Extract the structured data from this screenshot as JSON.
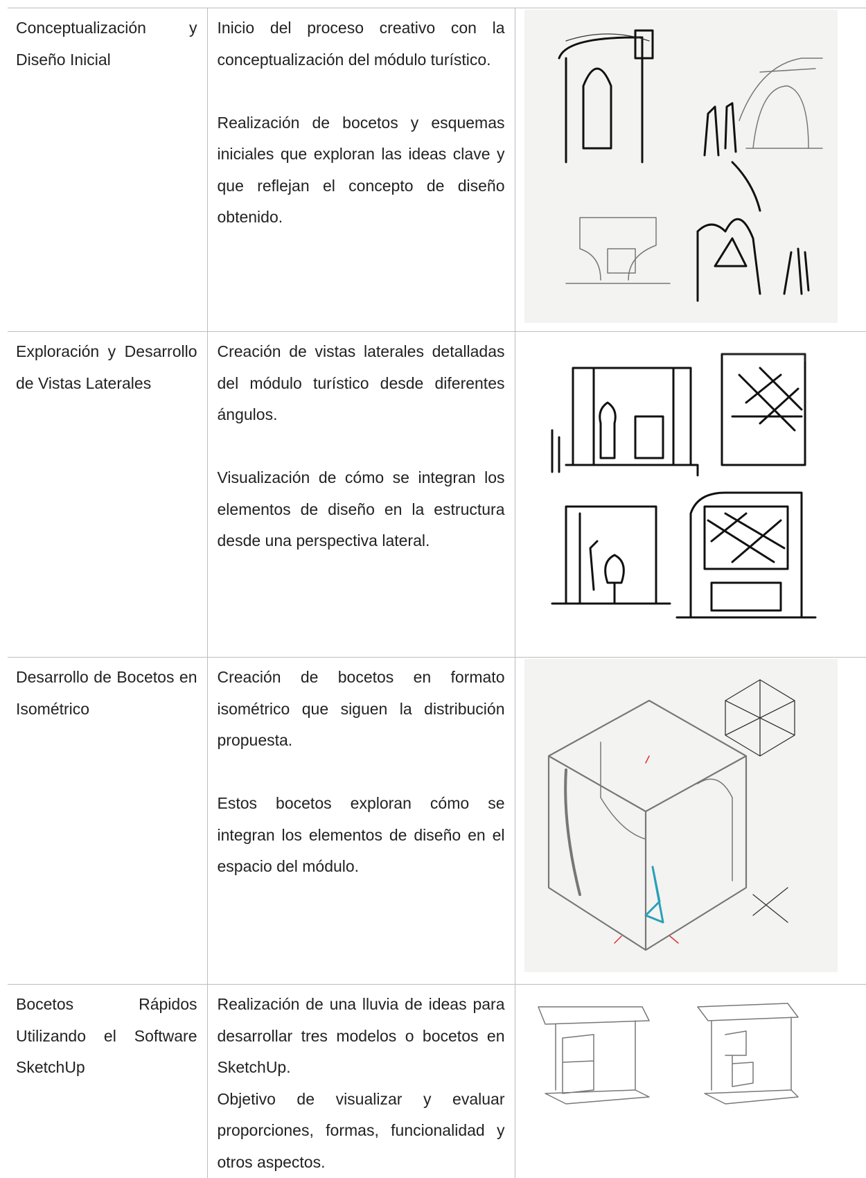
{
  "rows": [
    {
      "stage": "Conceptualización y Diseño Inicial",
      "paragraphs": [
        "Inicio del proceso creativo con la conceptualización del módulo turístico.",
        "Realización de bocetos y esquemas iniciales que exploran las ideas clave y que reflejan el concepto de diseño obtenido."
      ]
    },
    {
      "stage": "Exploración y Desarrollo de Vistas Laterales",
      "paragraphs": [
        "Creación de vistas laterales detalladas del módulo turístico desde diferentes ángulos.",
        "Visualización de cómo se integran los elementos de diseño en la estructura desde una perspectiva lateral."
      ]
    },
    {
      "stage": "Desarrollo de Bocetos en Isométrico",
      "paragraphs": [
        "Creación de bocetos en formato isométrico que siguen la distribución propuesta.",
        "Estos bocetos exploran cómo se integran los elementos de diseño en el espacio del módulo."
      ]
    },
    {
      "stage": "Bocetos Rápidos Utilizando el Software SketchUp",
      "paragraphs": [
        "Realización de una lluvia de ideas para desarrollar tres modelos o bocetos en SketchUp.",
        "Objetivo de visualizar y evaluar proporciones, formas, funcionalidad y otros aspectos."
      ]
    }
  ]
}
